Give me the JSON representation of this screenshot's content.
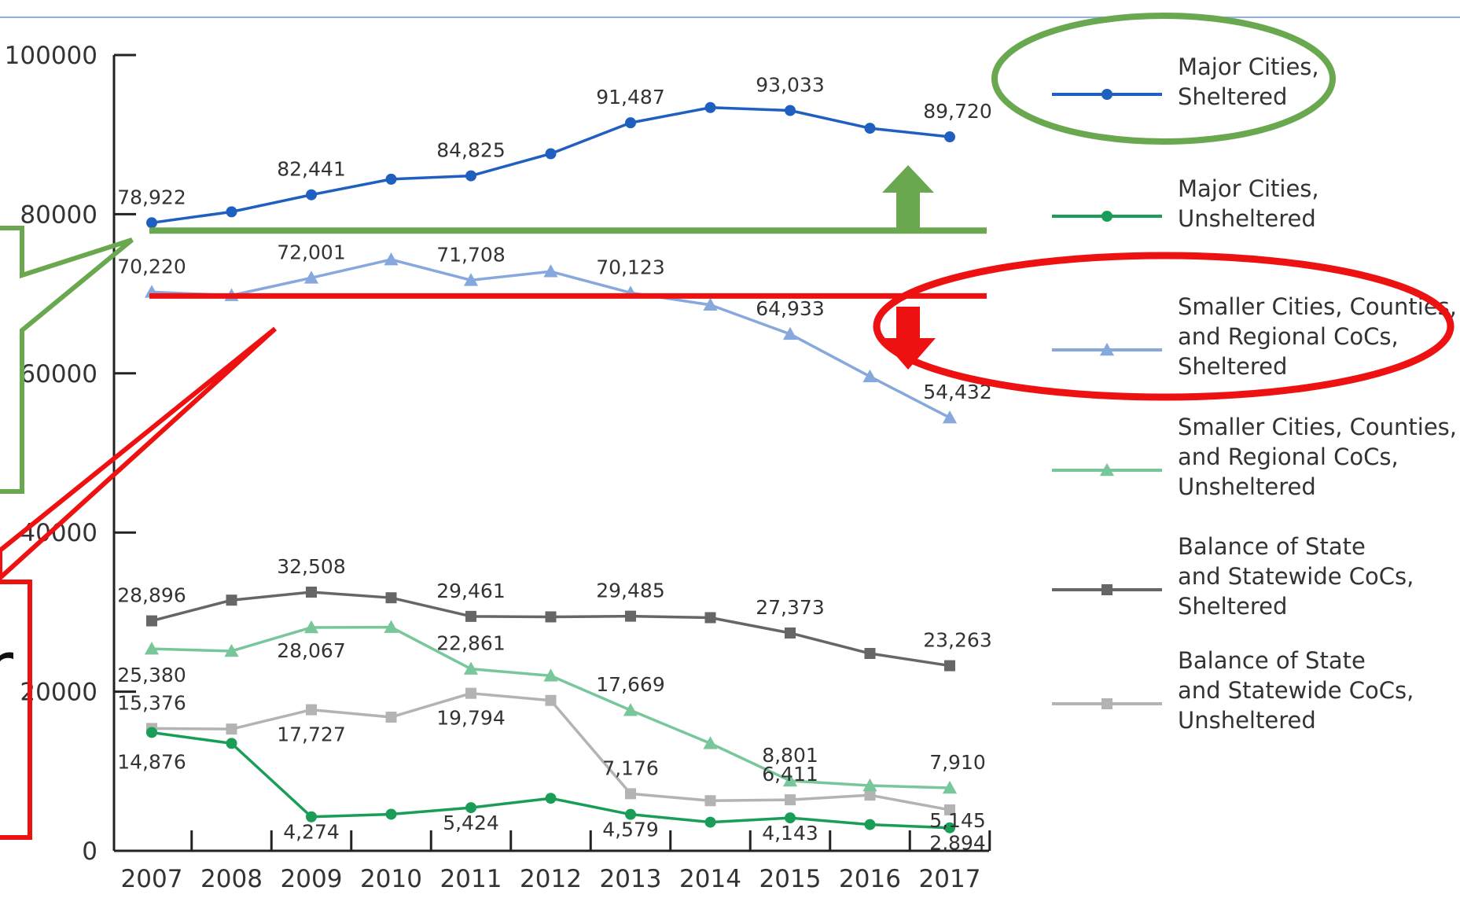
{
  "chart_data": {
    "type": "line",
    "x": [
      "2007",
      "2008",
      "2009",
      "2010",
      "2011",
      "2012",
      "2013",
      "2014",
      "2015",
      "2016",
      "2017"
    ],
    "ylim": [
      0,
      100000
    ],
    "yticks": [
      "0",
      "20000",
      "40000",
      "60000",
      "80000",
      "100000"
    ],
    "grid": false,
    "legend_position": "right",
    "series": [
      {
        "name": "Major Cities, Sheltered",
        "color": "#1f5fc0",
        "marker": "circle",
        "values": [
          78922,
          80300,
          82441,
          84400,
          84825,
          87600,
          91487,
          93400,
          93033,
          90800,
          89720
        ]
      },
      {
        "name": "Major Cities, Unsheltered",
        "color": "#1a9e57",
        "marker": "circle",
        "values": [
          14876,
          13500,
          4274,
          4600,
          5424,
          6600,
          4579,
          3600,
          4143,
          3300,
          2894
        ]
      },
      {
        "name": "Smaller Cities, Counties, and Regional CoCs, Sheltered",
        "color": "#86a8dd",
        "marker": "triangle",
        "values": [
          70220,
          69800,
          72001,
          74300,
          71708,
          72800,
          70123,
          68600,
          64933,
          59600,
          54432
        ]
      },
      {
        "name": "Smaller Cities, Counties, and Regional CoCs, Unsheltered",
        "color": "#78c79a",
        "marker": "triangle",
        "values": [
          25380,
          25100,
          28067,
          28100,
          22861,
          22000,
          17669,
          13500,
          8801,
          8200,
          7910
        ]
      },
      {
        "name": "Balance of State and Statewide CoCs, Sheltered",
        "color": "#666666",
        "marker": "square",
        "values": [
          28896,
          31500,
          32508,
          31800,
          29461,
          29400,
          29485,
          29300,
          27373,
          24800,
          23263
        ]
      },
      {
        "name": "Balance of State and Statewide CoCs, Unsheltered",
        "color": "#b3b3b3",
        "marker": "square",
        "values": [
          15376,
          15300,
          17727,
          16800,
          19794,
          18900,
          7176,
          6300,
          6411,
          7000,
          5145
        ]
      }
    ],
    "data_labels": [
      {
        "text": "78,922",
        "series": 0,
        "i": 0
      },
      {
        "text": "82,441",
        "series": 0,
        "i": 2
      },
      {
        "text": "84,825",
        "series": 0,
        "i": 4
      },
      {
        "text": "91,487",
        "series": 0,
        "i": 6
      },
      {
        "text": "93,033",
        "series": 0,
        "i": 8
      },
      {
        "text": "89,720",
        "series": 0,
        "i": 10
      },
      {
        "text": "70,220",
        "series": 2,
        "i": 0
      },
      {
        "text": "72,001",
        "series": 2,
        "i": 2
      },
      {
        "text": "71,708",
        "series": 2,
        "i": 4
      },
      {
        "text": "70,123",
        "series": 2,
        "i": 6
      },
      {
        "text": "64,933",
        "series": 2,
        "i": 8
      },
      {
        "text": "54,432",
        "series": 2,
        "i": 10
      },
      {
        "text": "28,896",
        "series": 4,
        "i": 0
      },
      {
        "text": "32,508",
        "series": 4,
        "i": 2
      },
      {
        "text": "29,461",
        "series": 4,
        "i": 4
      },
      {
        "text": "29,485",
        "series": 4,
        "i": 6
      },
      {
        "text": "27,373",
        "series": 4,
        "i": 8
      },
      {
        "text": "23,263",
        "series": 4,
        "i": 10
      },
      {
        "text": "25,380",
        "series": 3,
        "i": 0
      },
      {
        "text": "28,067",
        "series": 3,
        "i": 2
      },
      {
        "text": "22,861",
        "series": 3,
        "i": 4
      },
      {
        "text": "17,669",
        "series": 3,
        "i": 6
      },
      {
        "text": "8,801",
        "series": 3,
        "i": 8
      },
      {
        "text": "7,910",
        "series": 3,
        "i": 10
      },
      {
        "text": "15,376",
        "series": 5,
        "i": 0
      },
      {
        "text": "17,727",
        "series": 5,
        "i": 2
      },
      {
        "text": "19,794",
        "series": 5,
        "i": 4
      },
      {
        "text": "7,176",
        "series": 5,
        "i": 6
      },
      {
        "text": "6,411",
        "series": 5,
        "i": 8
      },
      {
        "text": "5,145",
        "series": 5,
        "i": 10
      },
      {
        "text": "14,876",
        "series": 1,
        "i": 0
      },
      {
        "text": "4,274",
        "series": 1,
        "i": 2
      },
      {
        "text": "5,424",
        "series": 1,
        "i": 4
      },
      {
        "text": "4,579",
        "series": 1,
        "i": 6
      },
      {
        "text": "4,143",
        "series": 1,
        "i": 8
      },
      {
        "text": "2,894",
        "series": 1,
        "i": 10
      }
    ],
    "legend": [
      {
        "series": 0,
        "lines": [
          "Major Cities,",
          "Sheltered"
        ]
      },
      {
        "series": 1,
        "lines": [
          "Major Cities,",
          "Unsheltered"
        ]
      },
      {
        "series": 2,
        "lines": [
          "Smaller Cities, Counties,",
          "and Regional CoCs,",
          "Sheltered"
        ]
      },
      {
        "series": 3,
        "lines": [
          "Smaller Cities, Counties,",
          "and Regional CoCs,",
          "Unsheltered"
        ]
      },
      {
        "series": 4,
        "lines": [
          "Balance of State",
          "and Statewide CoCs,",
          "Sheltered"
        ]
      },
      {
        "series": 5,
        "lines": [
          "Balance of State",
          "and Statewide CoCs,",
          "Unsheltered"
        ]
      }
    ],
    "annotations": {
      "green_color": "#6aa84f",
      "red_color": "#ee1111",
      "green_baseline_value": 78922,
      "red_baseline_value": 70220,
      "arrow_up": "green",
      "arrow_down": "red",
      "green_ellipse_target": "Major Cities, Sheltered",
      "red_ellipse_target": "Smaller Cities, Counties, and Regional CoCs, Sheltered",
      "clipped_text": "r"
    }
  }
}
